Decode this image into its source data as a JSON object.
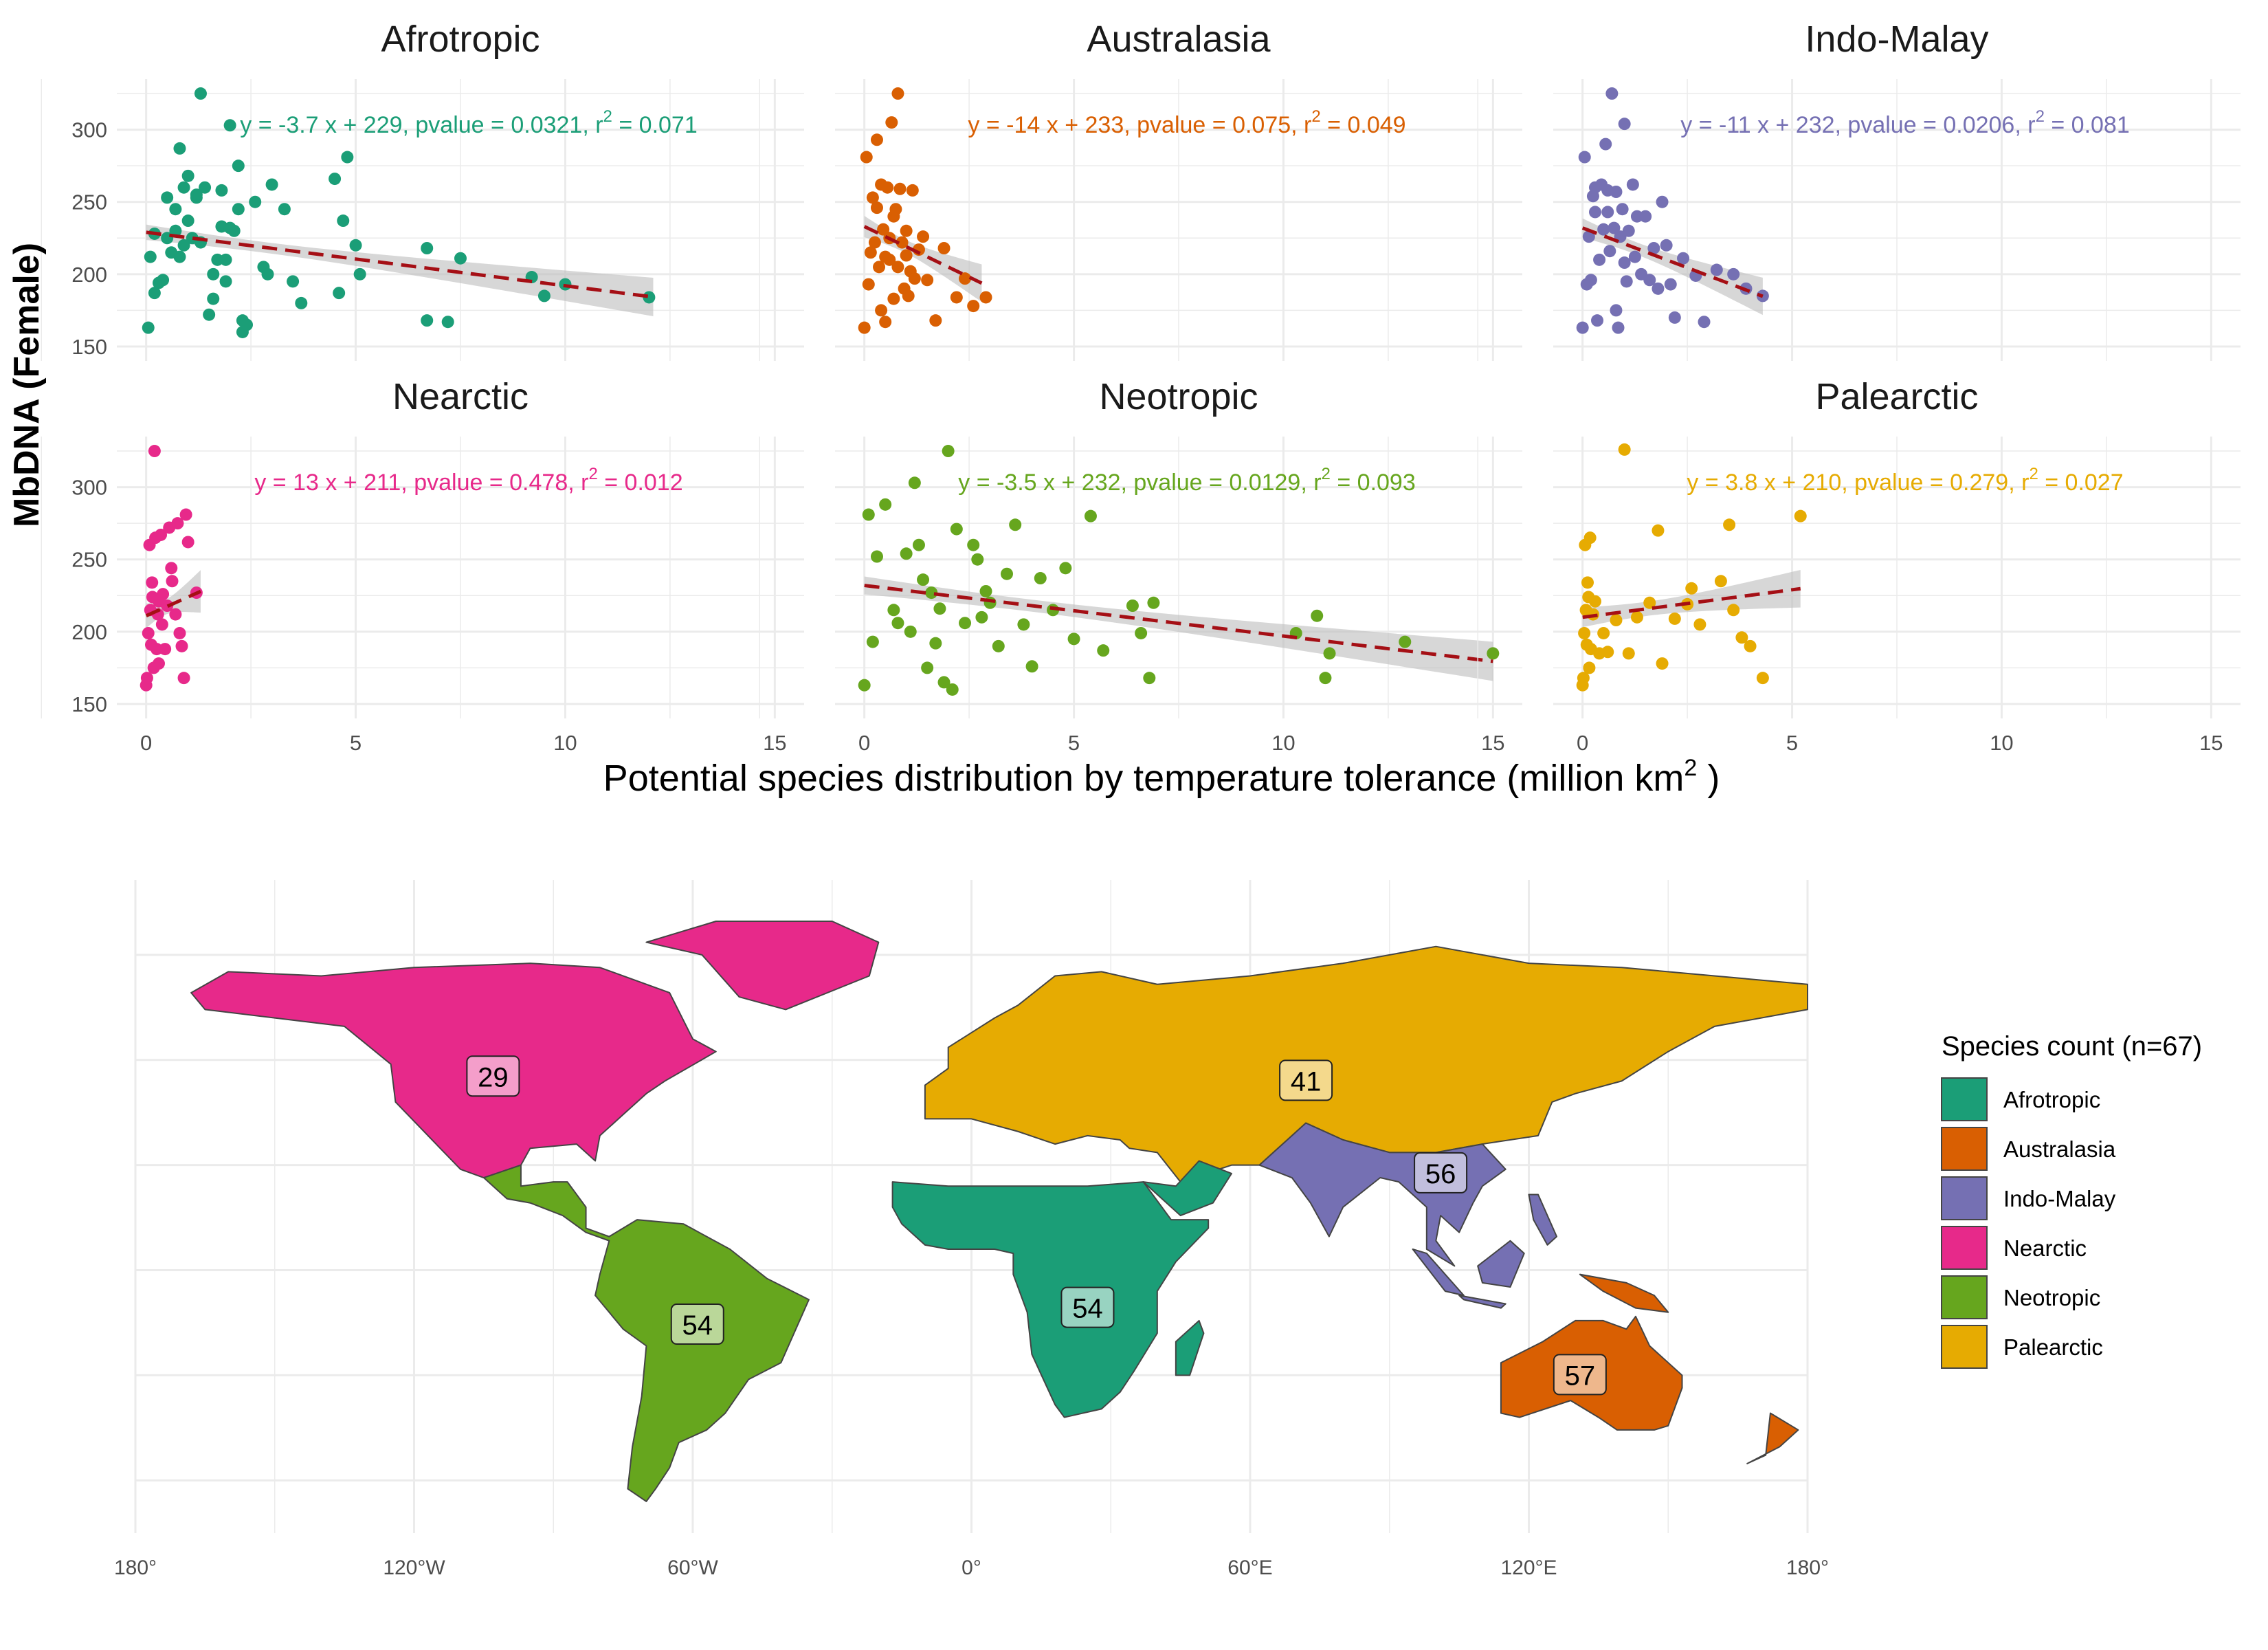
{
  "colors": {
    "Afrotropic": "#1b9e77",
    "Australasia": "#d95f02",
    "Indo-Malay": "#7570b3",
    "Nearctic": "#e7298a",
    "Neotropic": "#66a61e",
    "Palearctic": "#e6ab02",
    "trend_line": "#a50f15",
    "ribbon": "#bdbdbd",
    "grid": "#ebebeb",
    "panel_bg": "#ffffff"
  },
  "chart_data": {
    "type": "scatter",
    "ylabel": "MbDNA (Female)",
    "xlabel": "Potential species distribution by temperature tolerance (million km",
    "xlabel_sup": "2",
    "xlabel_suffix": " )",
    "xlim": [
      -0.7,
      15.7
    ],
    "ylim": [
      140,
      335
    ],
    "x_ticks": [
      "0",
      "5",
      "10",
      "15"
    ],
    "y_ticks": [
      "150",
      "200",
      "250",
      "300"
    ],
    "grid": true,
    "panels": [
      {
        "name": "Afrotropic",
        "equation": "y = -3.7 x + 229, pvalue = 0.0321, r",
        "eq_sup": "2",
        "eq_suffix": " = 0.071",
        "slope": -3.7,
        "intercept": 229,
        "x_range": [
          0,
          12.1
        ],
        "points": [
          [
            0.05,
            163
          ],
          [
            0.1,
            212
          ],
          [
            0.2,
            228
          ],
          [
            0.3,
            194
          ],
          [
            0.2,
            187
          ],
          [
            0.4,
            196
          ],
          [
            0.5,
            225
          ],
          [
            0.5,
            253
          ],
          [
            0.6,
            215
          ],
          [
            0.7,
            245
          ],
          [
            0.7,
            230
          ],
          [
            0.8,
            287
          ],
          [
            0.8,
            212
          ],
          [
            0.9,
            220
          ],
          [
            0.9,
            260
          ],
          [
            1.0,
            268
          ],
          [
            1.0,
            237
          ],
          [
            1.1,
            225
          ],
          [
            1.2,
            253
          ],
          [
            1.2,
            255
          ],
          [
            1.3,
            222
          ],
          [
            1.3,
            325
          ],
          [
            1.4,
            260
          ],
          [
            1.5,
            172
          ],
          [
            1.6,
            200
          ],
          [
            1.6,
            183
          ],
          [
            1.7,
            210
          ],
          [
            1.8,
            258
          ],
          [
            1.8,
            233
          ],
          [
            1.9,
            210
          ],
          [
            1.9,
            195
          ],
          [
            2.0,
            303
          ],
          [
            2.0,
            232
          ],
          [
            2.1,
            230
          ],
          [
            2.2,
            245
          ],
          [
            2.2,
            275
          ],
          [
            2.3,
            160
          ],
          [
            2.3,
            168
          ],
          [
            2.4,
            165
          ],
          [
            2.6,
            250
          ],
          [
            2.8,
            205
          ],
          [
            2.9,
            200
          ],
          [
            3.0,
            262
          ],
          [
            3.3,
            245
          ],
          [
            3.5,
            195
          ],
          [
            3.7,
            180
          ],
          [
            4.5,
            266
          ],
          [
            4.6,
            187
          ],
          [
            4.7,
            237
          ],
          [
            4.8,
            281
          ],
          [
            5.0,
            220
          ],
          [
            5.1,
            200
          ],
          [
            6.7,
            218
          ],
          [
            6.7,
            168
          ],
          [
            7.2,
            167
          ],
          [
            7.5,
            211
          ],
          [
            9.2,
            198
          ],
          [
            9.5,
            185
          ],
          [
            10.0,
            193
          ],
          [
            12.0,
            184
          ]
        ]
      },
      {
        "name": "Australasia",
        "equation": "y = -14 x + 233, pvalue = 0.075, r",
        "eq_sup": "2",
        "eq_suffix": " = 0.049",
        "slope": -14,
        "intercept": 233,
        "x_range": [
          0,
          2.8
        ],
        "points": [
          [
            0.0,
            163
          ],
          [
            0.05,
            281
          ],
          [
            0.1,
            193
          ],
          [
            0.15,
            215
          ],
          [
            0.2,
            253
          ],
          [
            0.25,
            222
          ],
          [
            0.3,
            293
          ],
          [
            0.3,
            246
          ],
          [
            0.35,
            205
          ],
          [
            0.4,
            175
          ],
          [
            0.4,
            262
          ],
          [
            0.45,
            231
          ],
          [
            0.5,
            167
          ],
          [
            0.5,
            212
          ],
          [
            0.55,
            260
          ],
          [
            0.6,
            225
          ],
          [
            0.6,
            210
          ],
          [
            0.65,
            305
          ],
          [
            0.7,
            240
          ],
          [
            0.7,
            183
          ],
          [
            0.75,
            245
          ],
          [
            0.8,
            205
          ],
          [
            0.8,
            325
          ],
          [
            0.85,
            259
          ],
          [
            0.9,
            222
          ],
          [
            0.95,
            190
          ],
          [
            1.0,
            230
          ],
          [
            1.0,
            213
          ],
          [
            1.05,
            185
          ],
          [
            1.1,
            202
          ],
          [
            1.15,
            258
          ],
          [
            1.2,
            197
          ],
          [
            1.3,
            217
          ],
          [
            1.4,
            226
          ],
          [
            1.5,
            196
          ],
          [
            1.7,
            168
          ],
          [
            1.9,
            218
          ],
          [
            2.2,
            184
          ],
          [
            2.4,
            197
          ],
          [
            2.6,
            178
          ],
          [
            2.9,
            184
          ]
        ]
      },
      {
        "name": "Indo-Malay",
        "equation": "y = -11 x + 232, pvalue = 0.0206, r",
        "eq_sup": "2",
        "eq_suffix": " = 0.081",
        "slope": -11,
        "intercept": 232,
        "x_range": [
          0,
          4.3
        ],
        "points": [
          [
            0.0,
            163
          ],
          [
            0.05,
            281
          ],
          [
            0.1,
            193
          ],
          [
            0.15,
            226
          ],
          [
            0.2,
            196
          ],
          [
            0.25,
            254
          ],
          [
            0.3,
            243
          ],
          [
            0.3,
            260
          ],
          [
            0.35,
            168
          ],
          [
            0.4,
            210
          ],
          [
            0.45,
            262
          ],
          [
            0.5,
            231
          ],
          [
            0.55,
            290
          ],
          [
            0.6,
            258
          ],
          [
            0.6,
            243
          ],
          [
            0.65,
            216
          ],
          [
            0.7,
            325
          ],
          [
            0.75,
            232
          ],
          [
            0.8,
            257
          ],
          [
            0.8,
            175
          ],
          [
            0.85,
            163
          ],
          [
            0.9,
            226
          ],
          [
            0.95,
            245
          ],
          [
            1.0,
            304
          ],
          [
            1.0,
            208
          ],
          [
            1.05,
            195
          ],
          [
            1.1,
            230
          ],
          [
            1.2,
            262
          ],
          [
            1.25,
            212
          ],
          [
            1.3,
            240
          ],
          [
            1.4,
            200
          ],
          [
            1.5,
            240
          ],
          [
            1.6,
            196
          ],
          [
            1.7,
            218
          ],
          [
            1.8,
            190
          ],
          [
            1.9,
            250
          ],
          [
            2.0,
            220
          ],
          [
            2.1,
            193
          ],
          [
            2.2,
            170
          ],
          [
            2.4,
            211
          ],
          [
            2.7,
            199
          ],
          [
            2.9,
            167
          ],
          [
            3.2,
            203
          ],
          [
            3.6,
            200
          ],
          [
            3.9,
            190
          ],
          [
            4.3,
            185
          ]
        ]
      },
      {
        "name": "Nearctic",
        "equation": "y = 13 x + 211, pvalue = 0.478, r",
        "eq_sup": "2",
        "eq_suffix": " = 0.012",
        "slope": 13,
        "intercept": 211,
        "x_range": [
          0,
          1.3
        ],
        "points": [
          [
            0.0,
            163
          ],
          [
            0.02,
            168
          ],
          [
            0.05,
            199
          ],
          [
            0.08,
            260
          ],
          [
            0.1,
            215
          ],
          [
            0.12,
            191
          ],
          [
            0.14,
            234
          ],
          [
            0.15,
            224
          ],
          [
            0.18,
            175
          ],
          [
            0.2,
            325
          ],
          [
            0.22,
            265
          ],
          [
            0.25,
            188
          ],
          [
            0.28,
            212
          ],
          [
            0.3,
            178
          ],
          [
            0.3,
            221
          ],
          [
            0.35,
            267
          ],
          [
            0.38,
            205
          ],
          [
            0.4,
            226
          ],
          [
            0.45,
            188
          ],
          [
            0.5,
            218
          ],
          [
            0.55,
            272
          ],
          [
            0.6,
            244
          ],
          [
            0.62,
            235
          ],
          [
            0.7,
            212
          ],
          [
            0.75,
            275
          ],
          [
            0.8,
            199
          ],
          [
            0.85,
            190
          ],
          [
            0.9,
            168
          ],
          [
            0.95,
            281
          ],
          [
            1.0,
            262
          ],
          [
            1.2,
            227
          ]
        ]
      },
      {
        "name": "Neotropic",
        "equation": "y = -3.5 x + 232, pvalue = 0.0129, r",
        "eq_sup": "2",
        "eq_suffix": " = 0.093",
        "slope": -3.5,
        "intercept": 232,
        "x_range": [
          0,
          15
        ],
        "points": [
          [
            0.0,
            163
          ],
          [
            0.1,
            281
          ],
          [
            0.2,
            193
          ],
          [
            0.3,
            252
          ],
          [
            0.5,
            288
          ],
          [
            0.7,
            215
          ],
          [
            0.8,
            206
          ],
          [
            1.0,
            254
          ],
          [
            1.1,
            200
          ],
          [
            1.2,
            303
          ],
          [
            1.3,
            260
          ],
          [
            1.4,
            236
          ],
          [
            1.5,
            175
          ],
          [
            1.6,
            227
          ],
          [
            1.7,
            192
          ],
          [
            1.8,
            216
          ],
          [
            1.9,
            165
          ],
          [
            2.0,
            325
          ],
          [
            2.1,
            160
          ],
          [
            2.2,
            271
          ],
          [
            2.4,
            206
          ],
          [
            2.6,
            260
          ],
          [
            2.7,
            250
          ],
          [
            2.8,
            210
          ],
          [
            2.9,
            228
          ],
          [
            3.0,
            220
          ],
          [
            3.2,
            190
          ],
          [
            3.4,
            240
          ],
          [
            3.6,
            274
          ],
          [
            3.8,
            205
          ],
          [
            4.0,
            176
          ],
          [
            4.2,
            237
          ],
          [
            4.5,
            215
          ],
          [
            4.8,
            244
          ],
          [
            5.0,
            195
          ],
          [
            5.4,
            280
          ],
          [
            5.7,
            187
          ],
          [
            6.4,
            218
          ],
          [
            6.6,
            199
          ],
          [
            6.8,
            168
          ],
          [
            6.9,
            220
          ],
          [
            10.3,
            199
          ],
          [
            10.8,
            211
          ],
          [
            11.0,
            168
          ],
          [
            11.1,
            185
          ],
          [
            12.9,
            193
          ],
          [
            15.0,
            185
          ]
        ]
      },
      {
        "name": "Palearctic",
        "equation": "y = 3.8 x + 210, pvalue = 0.279, r",
        "eq_sup": "2",
        "eq_suffix": " = 0.027",
        "slope": 3.8,
        "intercept": 210,
        "x_range": [
          0,
          5.2
        ],
        "points": [
          [
            0.0,
            163
          ],
          [
            0.02,
            168
          ],
          [
            0.04,
            199
          ],
          [
            0.06,
            260
          ],
          [
            0.08,
            215
          ],
          [
            0.1,
            191
          ],
          [
            0.12,
            234
          ],
          [
            0.14,
            224
          ],
          [
            0.16,
            175
          ],
          [
            0.18,
            265
          ],
          [
            0.2,
            188
          ],
          [
            0.25,
            212
          ],
          [
            0.3,
            221
          ],
          [
            0.4,
            185
          ],
          [
            0.5,
            199
          ],
          [
            0.6,
            186
          ],
          [
            0.8,
            208
          ],
          [
            1.0,
            326
          ],
          [
            1.1,
            185
          ],
          [
            1.3,
            210
          ],
          [
            1.6,
            220
          ],
          [
            1.8,
            270
          ],
          [
            1.9,
            178
          ],
          [
            2.2,
            209
          ],
          [
            2.5,
            219
          ],
          [
            2.6,
            230
          ],
          [
            2.8,
            205
          ],
          [
            3.3,
            235
          ],
          [
            3.5,
            274
          ],
          [
            3.6,
            215
          ],
          [
            3.8,
            196
          ],
          [
            4.0,
            190
          ],
          [
            4.3,
            168
          ],
          [
            5.2,
            280
          ]
        ]
      }
    ]
  },
  "map": {
    "x_ticks": [
      "180°",
      "120°W",
      "60°W",
      "0°",
      "60°E",
      "120°E",
      "180°"
    ],
    "legend_title": "Species count (n=67)",
    "legend_items": [
      "Afrotropic",
      "Australasia",
      "Indo-Malay",
      "Nearctic",
      "Neotropic",
      "Palearctic"
    ],
    "region_counts": [
      {
        "region": "Nearctic",
        "value": "29",
        "lon": -103,
        "lat": 46
      },
      {
        "region": "Palearctic",
        "value": "41",
        "lon": 72,
        "lat": 45
      },
      {
        "region": "Indo-Malay",
        "value": "56",
        "lon": 101,
        "lat": 23
      },
      {
        "region": "Neotropic",
        "value": "54",
        "lon": -59,
        "lat": -13
      },
      {
        "region": "Afrotropic",
        "value": "54",
        "lon": 25,
        "lat": -9
      },
      {
        "region": "Australasia",
        "value": "57",
        "lon": 131,
        "lat": -25
      }
    ]
  }
}
